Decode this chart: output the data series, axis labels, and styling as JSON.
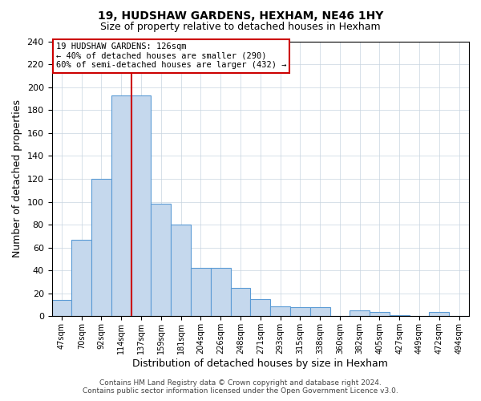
{
  "title": "19, HUDSHAW GARDENS, HEXHAM, NE46 1HY",
  "subtitle": "Size of property relative to detached houses in Hexham",
  "xlabel": "Distribution of detached houses by size in Hexham",
  "ylabel": "Number of detached properties",
  "bin_labels": [
    "47sqm",
    "70sqm",
    "92sqm",
    "114sqm",
    "137sqm",
    "159sqm",
    "181sqm",
    "204sqm",
    "226sqm",
    "248sqm",
    "271sqm",
    "293sqm",
    "315sqm",
    "338sqm",
    "360sqm",
    "382sqm",
    "405sqm",
    "427sqm",
    "449sqm",
    "472sqm",
    "494sqm"
  ],
  "bar_heights": [
    14,
    67,
    120,
    193,
    193,
    98,
    80,
    42,
    42,
    25,
    15,
    9,
    8,
    8,
    0,
    5,
    4,
    1,
    0,
    4,
    0
  ],
  "bar_color": "#c5d8ed",
  "bar_edge_color": "#5b9bd5",
  "ylim": [
    0,
    240
  ],
  "yticks": [
    0,
    20,
    40,
    60,
    80,
    100,
    120,
    140,
    160,
    180,
    200,
    220,
    240
  ],
  "vline_x_index": 4,
  "annotation_title": "19 HUDSHAW GARDENS: 126sqm",
  "annotation_line1": "← 40% of detached houses are smaller (290)",
  "annotation_line2": "60% of semi-detached houses are larger (432) →",
  "vline_color": "#cc0000",
  "annotation_box_edge_color": "#cc0000",
  "footer1": "Contains HM Land Registry data © Crown copyright and database right 2024.",
  "footer2": "Contains public sector information licensed under the Open Government Licence v3.0.",
  "background_color": "#ffffff",
  "grid_color": "#c8d4e0"
}
